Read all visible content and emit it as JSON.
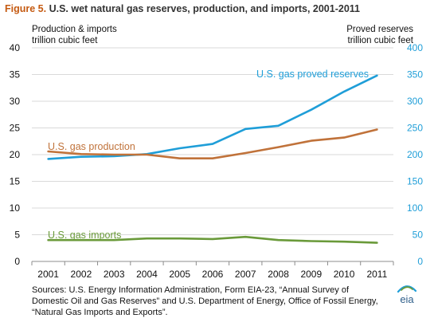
{
  "header": {
    "figure_label": "Figure 5.",
    "title_rest": "U.S. wet natural gas reserves, production, and imports, 2001-2011"
  },
  "units": {
    "left_line1": "Production & imports",
    "left_line2": "trillion cubic feet",
    "right_line1": "Proved reserves",
    "right_line2": "trillion cubic feet"
  },
  "footer": {
    "source": "Sources: U.S. Energy Information Administration, Form EIA-23, “Annual Survey of Domestic Oil and Gas Reserves” and U.S. Department of Energy, Office of Fossil Energy, “Natural Gas Imports and Exports”.",
    "logo_text": "eia"
  },
  "colors": {
    "reserves": "#1F9ED8",
    "production": "#C0723A",
    "imports": "#6A9A3A",
    "axis_left": "#111111",
    "axis_right": "#1F9ED8",
    "grid": "#D9D9D9"
  },
  "chart_data": {
    "type": "line",
    "x": [
      "2001",
      "2002",
      "2003",
      "2004",
      "2005",
      "2006",
      "2007",
      "2008",
      "2009",
      "2010",
      "2011"
    ],
    "y_left": {
      "min": 0,
      "max": 40,
      "ticks": [
        0,
        5,
        10,
        15,
        20,
        25,
        30,
        35,
        40
      ]
    },
    "y_right": {
      "min": 0,
      "max": 400,
      "ticks": [
        0,
        50,
        100,
        150,
        200,
        250,
        300,
        350,
        400
      ]
    },
    "grid": true,
    "series": [
      {
        "name": "U.S. gas proved  reserves",
        "axis": "right",
        "color": "#1F9ED8",
        "values": [
          192,
          196,
          197,
          201,
          212,
          220,
          248,
          254,
          284,
          318,
          348
        ]
      },
      {
        "name": "U.S. gas production",
        "axis": "left",
        "color": "#C0723A",
        "values": [
          20.6,
          20.1,
          20.0,
          20.0,
          19.3,
          19.3,
          20.3,
          21.4,
          22.6,
          23.2,
          24.7
        ]
      },
      {
        "name": "U.S. gas imports",
        "axis": "left",
        "color": "#6A9A3A",
        "values": [
          4.0,
          4.0,
          4.0,
          4.3,
          4.3,
          4.2,
          4.6,
          4.0,
          3.8,
          3.7,
          3.5
        ]
      }
    ]
  }
}
